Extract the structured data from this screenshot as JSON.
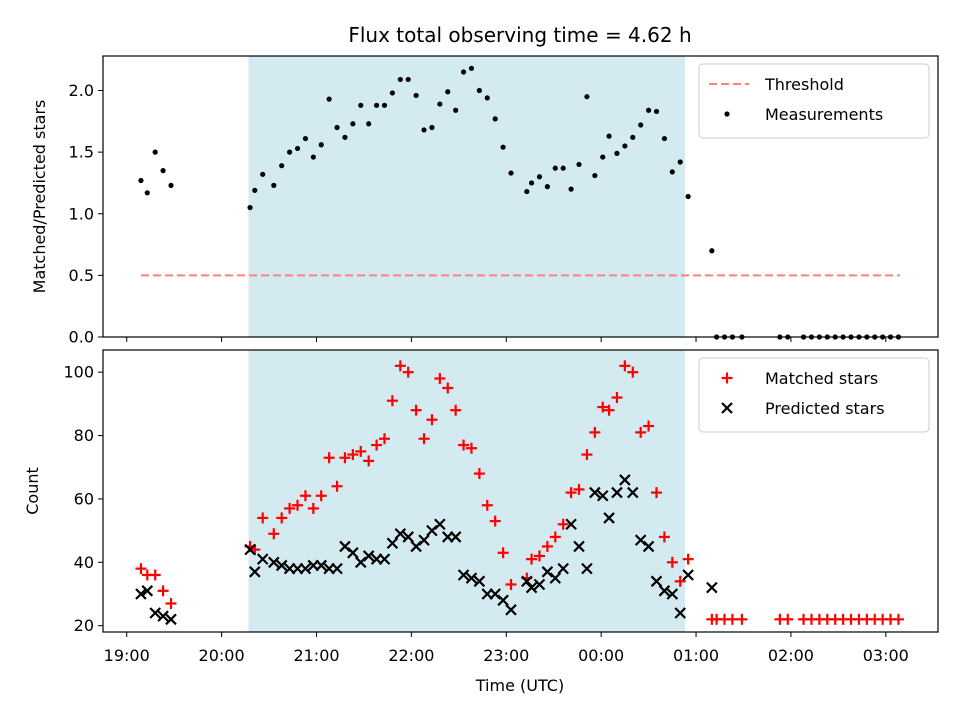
{
  "chart_data": {
    "type": "scatter",
    "title": "Flux total observing time = 4.62 h",
    "x_axis": {
      "label": "Time (UTC)",
      "range": [
        "18:45",
        "03:33"
      ],
      "ticks": [
        "19:00",
        "20:00",
        "21:00",
        "22:00",
        "23:00",
        "00:00",
        "01:00",
        "02:00",
        "03:00"
      ],
      "shared": true
    },
    "observing_window": {
      "start": "20:17",
      "end": "00:53",
      "color": "#d3eaf1"
    },
    "panels": [
      {
        "ylabel": "Matched/Predicted stars",
        "ylim": [
          0,
          2.28
        ],
        "yticks": [
          "0.0",
          "0.5",
          "1.0",
          "1.5",
          "2.0"
        ],
        "legend_position": "upper right",
        "series": [
          {
            "name": "Threshold",
            "type": "line",
            "style": "dashed",
            "color": "#ff8080",
            "points": [
              [
                "19:09",
                0.5
              ],
              [
                "03:09",
                0.5
              ]
            ]
          },
          {
            "name": "Measurements",
            "type": "scatter",
            "marker": "dot",
            "color": "#000000",
            "points": [
              [
                "19:09",
                1.27
              ],
              [
                "19:13",
                1.17
              ],
              [
                "19:18",
                1.5
              ],
              [
                "19:23",
                1.35
              ],
              [
                "19:28",
                1.23
              ],
              [
                "20:18",
                1.05
              ],
              [
                "20:21",
                1.19
              ],
              [
                "20:26",
                1.32
              ],
              [
                "20:33",
                1.23
              ],
              [
                "20:38",
                1.39
              ],
              [
                "20:43",
                1.5
              ],
              [
                "20:48",
                1.53
              ],
              [
                "20:53",
                1.61
              ],
              [
                "20:58",
                1.46
              ],
              [
                "21:03",
                1.56
              ],
              [
                "21:08",
                1.93
              ],
              [
                "21:13",
                1.7
              ],
              [
                "21:18",
                1.62
              ],
              [
                "21:23",
                1.73
              ],
              [
                "21:28",
                1.88
              ],
              [
                "21:33",
                1.73
              ],
              [
                "21:38",
                1.88
              ],
              [
                "21:43",
                1.88
              ],
              [
                "21:48",
                1.98
              ],
              [
                "21:53",
                2.09
              ],
              [
                "21:58",
                2.09
              ],
              [
                "22:03",
                1.96
              ],
              [
                "22:08",
                1.68
              ],
              [
                "22:13",
                1.7
              ],
              [
                "22:18",
                1.89
              ],
              [
                "22:23",
                1.99
              ],
              [
                "22:28",
                1.84
              ],
              [
                "22:33",
                2.15
              ],
              [
                "22:38",
                2.18
              ],
              [
                "22:43",
                2.0
              ],
              [
                "22:48",
                1.94
              ],
              [
                "22:53",
                1.77
              ],
              [
                "22:58",
                1.54
              ],
              [
                "23:03",
                1.33
              ],
              [
                "23:13",
                1.18
              ],
              [
                "23:16",
                1.25
              ],
              [
                "23:21",
                1.3
              ],
              [
                "23:26",
                1.22
              ],
              [
                "23:31",
                1.37
              ],
              [
                "23:36",
                1.37
              ],
              [
                "23:41",
                1.2
              ],
              [
                "23:46",
                1.4
              ],
              [
                "23:51",
                1.95
              ],
              [
                "23:56",
                1.31
              ],
              [
                "00:01",
                1.46
              ],
              [
                "00:05",
                1.63
              ],
              [
                "00:10",
                1.49
              ],
              [
                "00:15",
                1.55
              ],
              [
                "00:20",
                1.62
              ],
              [
                "00:25",
                1.72
              ],
              [
                "00:30",
                1.84
              ],
              [
                "00:35",
                1.83
              ],
              [
                "00:40",
                1.61
              ],
              [
                "00:45",
                1.34
              ],
              [
                "00:50",
                1.42
              ],
              [
                "00:55",
                1.14
              ],
              [
                "01:10",
                0.7
              ],
              [
                "01:13",
                0.0
              ],
              [
                "01:18",
                0.0
              ],
              [
                "01:23",
                0.0
              ],
              [
                "01:29",
                0.0
              ],
              [
                "01:53",
                0.0
              ],
              [
                "01:58",
                0.0
              ],
              [
                "02:08",
                0.0
              ],
              [
                "02:13",
                0.0
              ],
              [
                "02:18",
                0.0
              ],
              [
                "02:23",
                0.0
              ],
              [
                "02:28",
                0.0
              ],
              [
                "02:33",
                0.0
              ],
              [
                "02:38",
                0.0
              ],
              [
                "02:43",
                0.0
              ],
              [
                "02:48",
                0.0
              ],
              [
                "02:53",
                0.0
              ],
              [
                "02:58",
                0.0
              ],
              [
                "03:03",
                0.0
              ],
              [
                "03:08",
                0.0
              ]
            ]
          }
        ]
      },
      {
        "ylabel": "Count",
        "ylim": [
          18,
          107
        ],
        "yticks": [
          "20",
          "40",
          "60",
          "80",
          "100"
        ],
        "legend_position": "upper right",
        "series": [
          {
            "name": "Matched stars",
            "type": "scatter",
            "marker": "plus",
            "color": "#ff0000",
            "points": [
              [
                "19:09",
                38
              ],
              [
                "19:13",
                36
              ],
              [
                "19:18",
                36
              ],
              [
                "19:23",
                31
              ],
              [
                "19:28",
                27
              ],
              [
                "20:18",
                45
              ],
              [
                "20:21",
                44
              ],
              [
                "20:26",
                54
              ],
              [
                "20:33",
                49
              ],
              [
                "20:38",
                54
              ],
              [
                "20:43",
                57
              ],
              [
                "20:48",
                58
              ],
              [
                "20:53",
                61
              ],
              [
                "20:58",
                57
              ],
              [
                "21:03",
                61
              ],
              [
                "21:08",
                73
              ],
              [
                "21:13",
                64
              ],
              [
                "21:18",
                73
              ],
              [
                "21:23",
                74
              ],
              [
                "21:28",
                75
              ],
              [
                "21:33",
                72
              ],
              [
                "21:38",
                77
              ],
              [
                "21:43",
                79
              ],
              [
                "21:48",
                91
              ],
              [
                "21:53",
                102
              ],
              [
                "21:58",
                100
              ],
              [
                "22:03",
                88
              ],
              [
                "22:08",
                79
              ],
              [
                "22:13",
                85
              ],
              [
                "22:18",
                98
              ],
              [
                "22:23",
                95
              ],
              [
                "22:28",
                88
              ],
              [
                "22:33",
                77
              ],
              [
                "22:38",
                76
              ],
              [
                "22:43",
                68
              ],
              [
                "22:48",
                58
              ],
              [
                "22:53",
                53
              ],
              [
                "22:58",
                43
              ],
              [
                "23:03",
                33
              ],
              [
                "23:13",
                35
              ],
              [
                "23:16",
                41
              ],
              [
                "23:21",
                42
              ],
              [
                "23:26",
                45
              ],
              [
                "23:31",
                48
              ],
              [
                "23:36",
                52
              ],
              [
                "23:41",
                62
              ],
              [
                "23:46",
                63
              ],
              [
                "23:51",
                74
              ],
              [
                "23:56",
                81
              ],
              [
                "00:01",
                89
              ],
              [
                "00:05",
                88
              ],
              [
                "00:10",
                92
              ],
              [
                "00:15",
                102
              ],
              [
                "00:20",
                100
              ],
              [
                "00:25",
                81
              ],
              [
                "00:30",
                83
              ],
              [
                "00:35",
                62
              ],
              [
                "00:40",
                48
              ],
              [
                "00:45",
                40
              ],
              [
                "00:50",
                34
              ],
              [
                "00:55",
                41
              ],
              [
                "01:10",
                22
              ],
              [
                "01:13",
                22
              ],
              [
                "01:18",
                22
              ],
              [
                "01:23",
                22
              ],
              [
                "01:29",
                22
              ],
              [
                "01:53",
                22
              ],
              [
                "01:58",
                22
              ],
              [
                "02:08",
                22
              ],
              [
                "02:13",
                22
              ],
              [
                "02:18",
                22
              ],
              [
                "02:23",
                22
              ],
              [
                "02:28",
                22
              ],
              [
                "02:33",
                22
              ],
              [
                "02:38",
                22
              ],
              [
                "02:43",
                22
              ],
              [
                "02:48",
                22
              ],
              [
                "02:53",
                22
              ],
              [
                "02:58",
                22
              ],
              [
                "03:03",
                22
              ],
              [
                "03:08",
                22
              ]
            ]
          },
          {
            "name": "Predicted stars",
            "type": "scatter",
            "marker": "x",
            "color": "#000000",
            "points": [
              [
                "19:09",
                30
              ],
              [
                "19:13",
                31
              ],
              [
                "19:18",
                24
              ],
              [
                "19:23",
                23
              ],
              [
                "19:28",
                22
              ],
              [
                "20:18",
                44
              ],
              [
                "20:21",
                37
              ],
              [
                "20:26",
                41
              ],
              [
                "20:33",
                40
              ],
              [
                "20:38",
                39
              ],
              [
                "20:43",
                38
              ],
              [
                "20:48",
                38
              ],
              [
                "20:53",
                38
              ],
              [
                "20:58",
                39
              ],
              [
                "21:03",
                39
              ],
              [
                "21:08",
                38
              ],
              [
                "21:13",
                38
              ],
              [
                "21:18",
                45
              ],
              [
                "21:23",
                43
              ],
              [
                "21:28",
                40
              ],
              [
                "21:33",
                42
              ],
              [
                "21:38",
                41
              ],
              [
                "21:43",
                41
              ],
              [
                "21:48",
                46
              ],
              [
                "21:53",
                49
              ],
              [
                "21:58",
                48
              ],
              [
                "22:03",
                45
              ],
              [
                "22:08",
                47
              ],
              [
                "22:13",
                50
              ],
              [
                "22:18",
                52
              ],
              [
                "22:23",
                48
              ],
              [
                "22:28",
                48
              ],
              [
                "22:33",
                36
              ],
              [
                "22:38",
                35
              ],
              [
                "22:43",
                34
              ],
              [
                "22:48",
                30
              ],
              [
                "22:53",
                30
              ],
              [
                "22:58",
                28
              ],
              [
                "23:03",
                25
              ],
              [
                "23:13",
                34
              ],
              [
                "23:16",
                32
              ],
              [
                "23:21",
                33
              ],
              [
                "23:26",
                37
              ],
              [
                "23:31",
                35
              ],
              [
                "23:36",
                38
              ],
              [
                "23:41",
                52
              ],
              [
                "23:46",
                45
              ],
              [
                "23:51",
                38
              ],
              [
                "23:56",
                62
              ],
              [
                "00:01",
                61
              ],
              [
                "00:05",
                54
              ],
              [
                "00:10",
                62
              ],
              [
                "00:15",
                66
              ],
              [
                "00:20",
                62
              ],
              [
                "00:25",
                47
              ],
              [
                "00:30",
                45
              ],
              [
                "00:35",
                34
              ],
              [
                "00:40",
                31
              ],
              [
                "00:45",
                30
              ],
              [
                "00:50",
                24
              ],
              [
                "00:55",
                36
              ],
              [
                "01:10",
                32
              ]
            ]
          }
        ]
      }
    ]
  }
}
